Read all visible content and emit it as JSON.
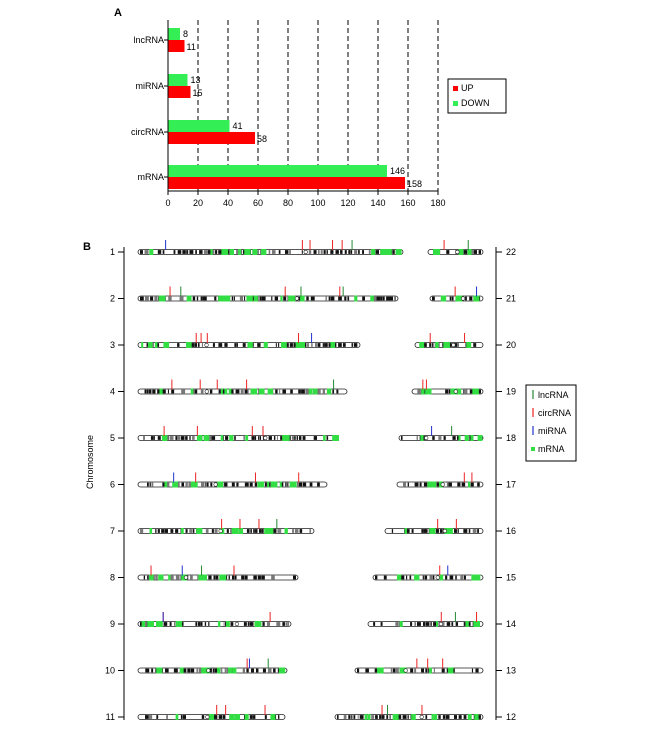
{
  "panel_a": {
    "label": "A",
    "categories": [
      "lncRNA",
      "miRNA",
      "circRNA",
      "mRNA"
    ],
    "up_values": [
      11,
      15,
      58,
      158
    ],
    "down_values": [
      8,
      13,
      41,
      146
    ],
    "x_ticks": [
      "0",
      "20",
      "40",
      "60",
      "80",
      "100",
      "120",
      "140",
      "160",
      "180"
    ],
    "legend": {
      "up": "UP",
      "down": "DOWN"
    },
    "colors": {
      "up": "#ff0000",
      "down": "#33ee55"
    }
  },
  "panel_b": {
    "label": "B",
    "y_axis_label": "Chromosome",
    "left_chromosomes": [
      "1",
      "2",
      "3",
      "4",
      "5",
      "6",
      "7",
      "8",
      "9",
      "10",
      "11"
    ],
    "right_chromosomes": [
      "22",
      "21",
      "20",
      "19",
      "18",
      "17",
      "16",
      "15",
      "14",
      "13",
      "12"
    ],
    "legend": [
      {
        "label": "lncRNA",
        "color": "#228833",
        "shape": "line"
      },
      {
        "label": "circRNA",
        "color": "#ee2222",
        "shape": "line"
      },
      {
        "label": "miRNA",
        "color": "#2233cc",
        "shape": "line"
      },
      {
        "label": "mRNA",
        "color": "#33dd44",
        "shape": "square"
      }
    ]
  },
  "chart_data": [
    {
      "type": "bar",
      "orientation": "horizontal",
      "categories": [
        "lncRNA",
        "miRNA",
        "circRNA",
        "mRNA"
      ],
      "series": [
        {
          "name": "UP",
          "values": [
            11,
            15,
            58,
            158
          ]
        },
        {
          "name": "DOWN",
          "values": [
            8,
            13,
            41,
            146
          ]
        }
      ],
      "xlim": [
        0,
        180
      ],
      "x_ticks": [
        0,
        20,
        40,
        60,
        80,
        100,
        120,
        140,
        160,
        180
      ],
      "grid": "vertical dashed",
      "legend_position": "right"
    }
  ]
}
